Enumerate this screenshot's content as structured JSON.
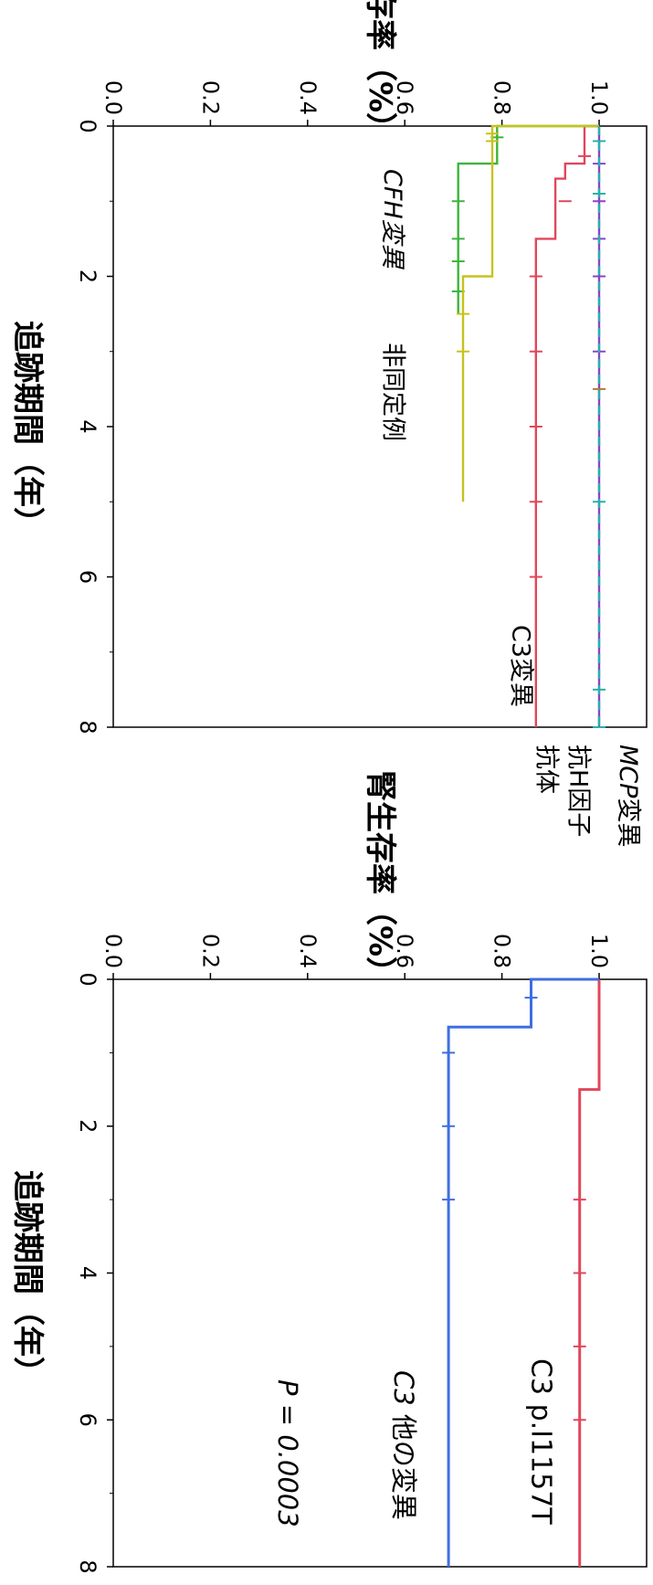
{
  "colors": {
    "c3": "#e0475b",
    "cfh": "#3cb43c",
    "nonid": "#c8c21e",
    "mcp": "#8a44c8",
    "antiH": "#2ab0a8",
    "extra_ticks": "#b07a3a",
    "p1157t": "#e0475b",
    "other_c3": "#3f6ee0"
  },
  "chart_data": [
    {
      "type": "line",
      "step": true,
      "ylabel": "腎生存率（%）",
      "xlabel": "追跡期間（年）",
      "xlim": [
        0,
        8
      ],
      "ylim": [
        0,
        1.0
      ],
      "x_ticks": [
        "0",
        "2",
        "4",
        "6",
        "8"
      ],
      "y_ticks": [
        "0.0",
        "0.2",
        "0.4",
        "0.6",
        "0.8",
        "1.0"
      ],
      "grid": false,
      "series": [
        {
          "key": "c3",
          "name": "C3変異",
          "steps": [
            [
              0,
              1.0
            ],
            [
              0,
              0.97
            ],
            [
              0.5,
              0.97
            ],
            [
              0.5,
              0.93
            ],
            [
              0.7,
              0.93
            ],
            [
              0.7,
              0.91
            ],
            [
              1.5,
              0.91
            ],
            [
              1.5,
              0.87
            ],
            [
              8,
              0.87
            ]
          ],
          "censored": [
            [
              0.4,
              0.97
            ],
            [
              1.0,
              0.93
            ],
            [
              2.0,
              0.87
            ],
            [
              3.0,
              0.87
            ],
            [
              4.0,
              0.87
            ],
            [
              5.0,
              0.87
            ],
            [
              6.0,
              0.87
            ]
          ]
        },
        {
          "key": "cfh",
          "name": "CFH変異",
          "steps": [
            [
              0,
              1.0
            ],
            [
              0,
              0.79
            ],
            [
              0.5,
              0.79
            ],
            [
              0.5,
              0.71
            ],
            [
              2.5,
              0.71
            ]
          ],
          "censored": [
            [
              0.15,
              0.79
            ],
            [
              1.0,
              0.71
            ],
            [
              1.5,
              0.71
            ],
            [
              1.8,
              0.71
            ],
            [
              2.2,
              0.71
            ]
          ]
        },
        {
          "key": "nonid",
          "name": "非同定例",
          "steps": [
            [
              0,
              1.0
            ],
            [
              0,
              0.78
            ],
            [
              2.0,
              0.78
            ],
            [
              2.0,
              0.72
            ],
            [
              5.0,
              0.72
            ]
          ],
          "censored": [
            [
              0.1,
              0.78
            ],
            [
              0.2,
              0.78
            ],
            [
              2.5,
              0.72
            ],
            [
              3.0,
              0.72
            ]
          ]
        },
        {
          "key": "mcp",
          "name": "MCP変異",
          "steps": [
            [
              0,
              1.0
            ],
            [
              8,
              1.0
            ]
          ],
          "censored": [
            [
              0.5,
              1.0
            ],
            [
              1.0,
              1.0
            ],
            [
              1.5,
              1.0
            ],
            [
              2.0,
              1.0
            ],
            [
              3.0,
              1.0
            ]
          ]
        },
        {
          "key": "antiH",
          "name": "抗H因子抗体",
          "steps": [
            [
              0,
              1.0
            ],
            [
              8,
              1.0
            ]
          ],
          "censored": [
            [
              0.2,
              1.0
            ],
            [
              0.9,
              1.0
            ],
            [
              5.0,
              1.0
            ],
            [
              7.5,
              1.0
            ],
            [
              8.0,
              1.0
            ]
          ]
        },
        {
          "key": "extra_ticks",
          "name": "",
          "steps": [],
          "censored": [
            [
              3.5,
              1.0
            ]
          ]
        }
      ]
    },
    {
      "type": "line",
      "step": true,
      "ylabel": "腎生存率（%）",
      "xlabel": "追跡期間（年）",
      "xlim": [
        0,
        8
      ],
      "ylim": [
        0,
        1.0
      ],
      "x_ticks": [
        "0",
        "2",
        "4",
        "6",
        "8"
      ],
      "y_ticks": [
        "0.0",
        "0.2",
        "0.4",
        "0.6",
        "0.8",
        "1.0"
      ],
      "grid": false,
      "annotation": "P = 0.0003",
      "series": [
        {
          "key": "p1157t",
          "name": "C3 p.I1157T",
          "steps": [
            [
              0,
              1.0
            ],
            [
              1.5,
              1.0
            ],
            [
              1.5,
              0.96
            ],
            [
              8,
              0.96
            ]
          ],
          "censored": [
            [
              3.0,
              0.96
            ],
            [
              4.0,
              0.96
            ],
            [
              5.0,
              0.96
            ],
            [
              6.0,
              0.96
            ]
          ]
        },
        {
          "key": "other_c3",
          "name": "C3 他の変異",
          "steps": [
            [
              0,
              1.0
            ],
            [
              0,
              0.86
            ],
            [
              0.65,
              0.86
            ],
            [
              0.65,
              0.69
            ],
            [
              8,
              0.69
            ]
          ],
          "censored": [
            [
              0.25,
              0.86
            ],
            [
              1.0,
              0.69
            ],
            [
              2.0,
              0.69
            ],
            [
              3.0,
              0.69
            ]
          ]
        }
      ]
    }
  ],
  "labels": {
    "top": {
      "cfh": "CFH変異",
      "nonid": "非同定例",
      "c3": "C3変異",
      "mcp_italic": "MCP",
      "mcp_rest": "変異",
      "antiH_line1": "抗H因子",
      "antiH_line2": "抗体"
    },
    "bottom": {
      "p1157t": "C3 p.I1157T",
      "other_italic": "C3",
      "other_rest": " 他の変異",
      "pvalue": "P = 0.0003"
    }
  }
}
